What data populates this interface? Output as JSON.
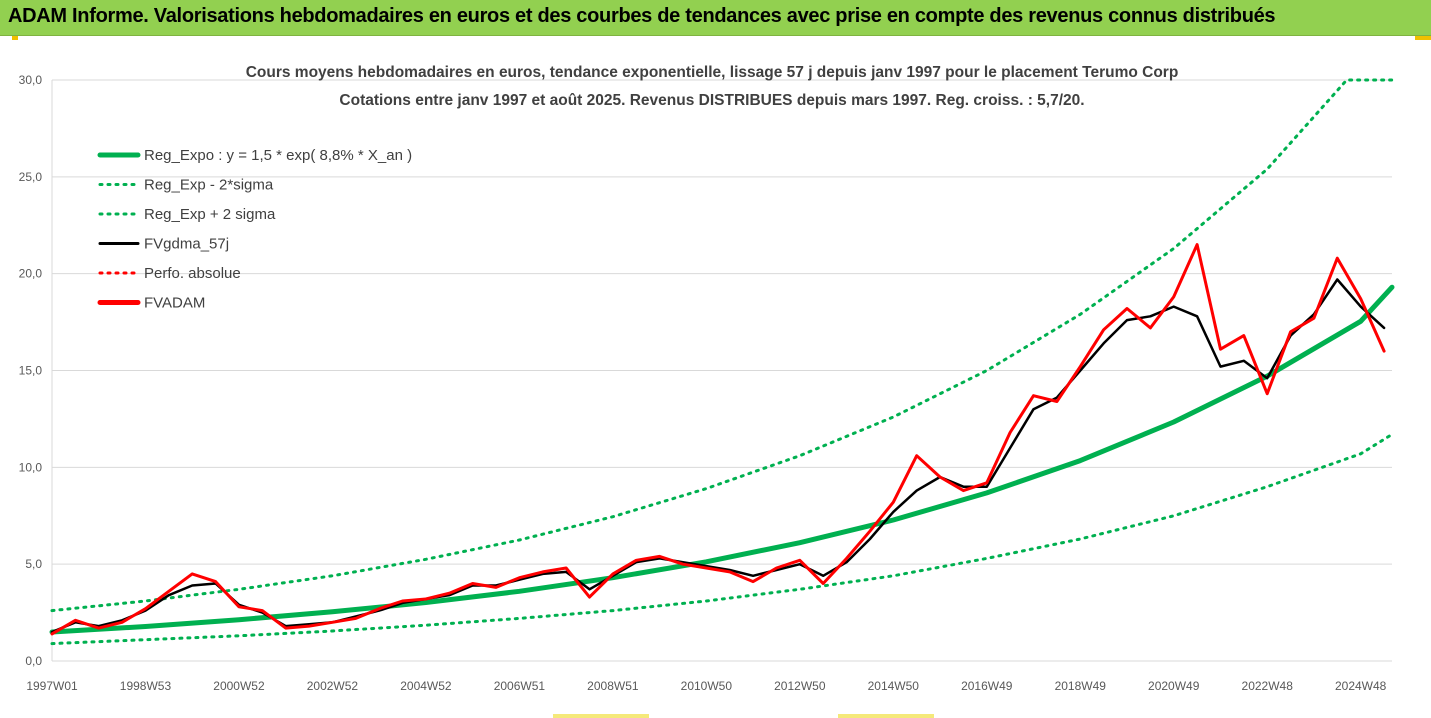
{
  "banner": {
    "text": "ADAM Informe. Valorisations hebdomadaires en euros et des courbes de tendances avec prise en compte des revenus connus distribués"
  },
  "chart_data": {
    "type": "line",
    "title": "Cours moyens hebdomadaires en euros, tendance exponentielle, lissage 57 j depuis janv 1997 pour le placement Terumo Corp",
    "subtitle": "Cotations entre janv 1997 et août 2025.  Revenus DISTRIBUES depuis mars 1997. Reg. croiss. : 5,7/20.",
    "ylim": [
      0,
      30
    ],
    "xlim": [
      1997.0,
      2025.67
    ],
    "y_ticks": [
      "0,0",
      "5,0",
      "10,0",
      "15,0",
      "20,0",
      "25,0",
      "30,0"
    ],
    "y_tick_values": [
      0,
      5,
      10,
      15,
      20,
      25,
      30
    ],
    "x_ticks": [
      "1997W01",
      "1998W53",
      "2000W52",
      "2002W52",
      "2004W52",
      "2006W51",
      "2008W51",
      "2010W50",
      "2012W50",
      "2014W50",
      "2016W49",
      "2018W49",
      "2020W49",
      "2022W48",
      "2024W48"
    ],
    "x_tick_values": [
      1997.0,
      1999.0,
      2001.0,
      2003.0,
      2005.0,
      2007.0,
      2009.0,
      2011.0,
      2013.0,
      2015.0,
      2017.0,
      2019.0,
      2021.0,
      2023.0,
      2025.0
    ],
    "grid": "horizontal",
    "legend_position": "top-left",
    "series": [
      {
        "name": "Reg_Expo : y = 1,5 * exp( 8,8% *  X_an )",
        "color": "#00b050",
        "style": "solid-thick",
        "x": [
          1997.0,
          1999.0,
          2001.0,
          2003.0,
          2005.0,
          2007.0,
          2009.0,
          2011.0,
          2013.0,
          2015.0,
          2017.0,
          2019.0,
          2021.0,
          2023.0,
          2025.0,
          2025.67
        ],
        "y": [
          1.5,
          1.78,
          2.13,
          2.54,
          3.02,
          3.6,
          4.3,
          5.12,
          6.11,
          7.28,
          8.68,
          10.35,
          12.34,
          14.71,
          17.54,
          19.3
        ]
      },
      {
        "name": "Reg_Exp - 2*sigma",
        "color": "#00b050",
        "style": "dotted",
        "x": [
          1997.0,
          1999.0,
          2001.0,
          2003.0,
          2005.0,
          2007.0,
          2009.0,
          2011.0,
          2013.0,
          2015.0,
          2017.0,
          2019.0,
          2021.0,
          2023.0,
          2025.0,
          2025.67
        ],
        "y": [
          0.9,
          1.1,
          1.3,
          1.55,
          1.85,
          2.2,
          2.6,
          3.1,
          3.7,
          4.4,
          5.3,
          6.3,
          7.5,
          9.0,
          10.7,
          11.7
        ]
      },
      {
        "name": "Reg_Exp + 2 sigma",
        "color": "#00b050",
        "style": "dotted",
        "x": [
          1997.0,
          1999.0,
          2001.0,
          2003.0,
          2005.0,
          2007.0,
          2009.0,
          2011.0,
          2013.0,
          2015.0,
          2017.0,
          2019.0,
          2021.0,
          2023.0,
          2024.7,
          2025.0,
          2025.67
        ],
        "y": [
          2.6,
          3.1,
          3.7,
          4.4,
          5.25,
          6.25,
          7.45,
          8.9,
          10.6,
          12.6,
          15.0,
          17.9,
          21.3,
          25.4,
          30.0,
          30.0,
          30.0
        ]
      },
      {
        "name": "FVgdma_57j",
        "color": "#000000",
        "style": "solid",
        "x": [
          1997.0,
          1997.5,
          1998.0,
          1998.5,
          1999.0,
          1999.5,
          2000.0,
          2000.5,
          2001.0,
          2001.5,
          2002.0,
          2002.5,
          2003.0,
          2003.5,
          2004.0,
          2004.5,
          2005.0,
          2005.5,
          2006.0,
          2006.5,
          2007.0,
          2007.5,
          2008.0,
          2008.5,
          2009.0,
          2009.5,
          2010.0,
          2010.5,
          2011.0,
          2011.5,
          2012.0,
          2012.5,
          2013.0,
          2013.5,
          2014.0,
          2014.5,
          2015.0,
          2015.5,
          2016.0,
          2016.5,
          2017.0,
          2017.5,
          2018.0,
          2018.5,
          2019.0,
          2019.5,
          2020.0,
          2020.5,
          2021.0,
          2021.5,
          2022.0,
          2022.5,
          2023.0,
          2023.5,
          2024.0,
          2024.5,
          2025.0,
          2025.5
        ],
        "y": [
          1.5,
          2.0,
          1.8,
          2.1,
          2.6,
          3.4,
          3.9,
          4.0,
          2.9,
          2.5,
          1.8,
          1.9,
          2.0,
          2.3,
          2.6,
          3.0,
          3.2,
          3.4,
          3.9,
          3.9,
          4.2,
          4.5,
          4.6,
          3.7,
          4.4,
          5.1,
          5.3,
          5.1,
          4.9,
          4.7,
          4.4,
          4.7,
          5.0,
          4.4,
          5.1,
          6.3,
          7.7,
          8.8,
          9.5,
          9.0,
          9.0,
          11.0,
          13.0,
          13.6,
          15.0,
          16.4,
          17.6,
          17.8,
          18.3,
          17.8,
          15.2,
          15.5,
          14.6,
          16.8,
          17.9,
          19.7,
          18.3,
          17.2
        ]
      },
      {
        "name": "Perfo. absolue",
        "color": "#ff0000",
        "style": "dotted",
        "x": [
          1997.0,
          1997.5,
          1998.0,
          1998.5,
          1999.0,
          1999.5,
          2000.0,
          2000.5,
          2001.0,
          2001.5,
          2002.0,
          2002.5,
          2003.0,
          2003.5,
          2004.0,
          2004.5,
          2005.0,
          2005.5,
          2006.0,
          2006.5,
          2007.0,
          2007.5,
          2008.0,
          2008.5,
          2009.0,
          2009.5,
          2010.0,
          2010.5,
          2011.0,
          2011.5,
          2012.0,
          2012.5,
          2013.0,
          2013.5,
          2014.0,
          2014.5,
          2015.0,
          2015.5,
          2016.0,
          2016.5,
          2017.0,
          2017.5,
          2018.0,
          2018.5,
          2019.0,
          2019.5,
          2020.0,
          2020.5,
          2021.0,
          2021.5,
          2022.0,
          2022.5,
          2023.0,
          2023.5,
          2024.0,
          2024.5,
          2025.0,
          2025.5
        ],
        "y": [
          1.4,
          2.1,
          1.7,
          2.0,
          2.7,
          3.6,
          4.5,
          4.1,
          2.8,
          2.6,
          1.7,
          1.8,
          2.0,
          2.2,
          2.7,
          3.1,
          3.2,
          3.5,
          4.0,
          3.8,
          4.3,
          4.6,
          4.8,
          3.3,
          4.5,
          5.2,
          5.4,
          5.0,
          4.8,
          4.6,
          4.1,
          4.8,
          5.2,
          4.0,
          5.3,
          6.7,
          8.2,
          10.6,
          9.5,
          8.8,
          9.2,
          11.8,
          13.7,
          13.4,
          15.2,
          17.1,
          18.2,
          17.2,
          18.8,
          21.5,
          16.1,
          16.8,
          13.8,
          17.0,
          17.7,
          20.8,
          18.7,
          16.0
        ]
      },
      {
        "name": "FVADAM",
        "color": "#ff0000",
        "style": "solid-thick",
        "x": [
          1997.0,
          1997.5,
          1998.0,
          1998.5,
          1999.0,
          1999.5,
          2000.0,
          2000.5,
          2001.0,
          2001.5,
          2002.0,
          2002.5,
          2003.0,
          2003.5,
          2004.0,
          2004.5,
          2005.0,
          2005.5,
          2006.0,
          2006.5,
          2007.0,
          2007.5,
          2008.0,
          2008.5,
          2009.0,
          2009.5,
          2010.0,
          2010.5,
          2011.0,
          2011.5,
          2012.0,
          2012.5,
          2013.0,
          2013.5,
          2014.0,
          2014.5,
          2015.0,
          2015.5,
          2016.0,
          2016.5,
          2017.0,
          2017.5,
          2018.0,
          2018.5,
          2019.0,
          2019.5,
          2020.0,
          2020.5,
          2021.0,
          2021.5,
          2022.0,
          2022.5,
          2023.0,
          2023.5,
          2024.0,
          2024.5,
          2025.0,
          2025.5
        ],
        "y": [
          1.4,
          2.1,
          1.7,
          2.0,
          2.7,
          3.6,
          4.5,
          4.1,
          2.8,
          2.6,
          1.7,
          1.8,
          2.0,
          2.2,
          2.7,
          3.1,
          3.2,
          3.5,
          4.0,
          3.8,
          4.3,
          4.6,
          4.8,
          3.3,
          4.5,
          5.2,
          5.4,
          5.0,
          4.8,
          4.6,
          4.1,
          4.8,
          5.2,
          4.0,
          5.3,
          6.7,
          8.2,
          10.6,
          9.5,
          8.8,
          9.2,
          11.8,
          13.7,
          13.4,
          15.2,
          17.1,
          18.2,
          17.2,
          18.8,
          21.5,
          16.1,
          16.8,
          13.8,
          17.0,
          17.7,
          20.8,
          18.7,
          16.0
        ]
      }
    ]
  }
}
